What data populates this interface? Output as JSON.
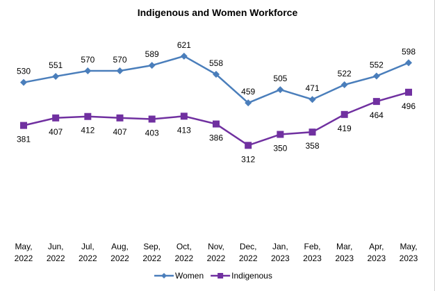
{
  "chart_data": {
    "type": "line",
    "title": "Indigenous and Women Workforce",
    "xlabel": "",
    "ylabel": "",
    "ylim": [
      0,
      700
    ],
    "grid": false,
    "legend_position": "bottom",
    "categories": [
      [
        "May,",
        "2022"
      ],
      [
        "Jun,",
        "2022"
      ],
      [
        "Jul,",
        "2022"
      ],
      [
        "Aug,",
        "2022"
      ],
      [
        "Sep,",
        "2022"
      ],
      [
        "Oct,",
        "2022"
      ],
      [
        "Nov,",
        "2022"
      ],
      [
        "Dec,",
        "2022"
      ],
      [
        "Jan,",
        "2023"
      ],
      [
        "Feb,",
        "2023"
      ],
      [
        "Mar,",
        "2023"
      ],
      [
        "Apr,",
        "2023"
      ],
      [
        "May,",
        "2023"
      ]
    ],
    "series": [
      {
        "name": "Women",
        "color": "#4a7ebb",
        "marker": "diamond",
        "label_position": "above",
        "values": [
          530,
          551,
          570,
          570,
          589,
          621,
          558,
          459,
          505,
          471,
          522,
          552,
          598
        ]
      },
      {
        "name": "Indigenous",
        "color": "#7030a0",
        "marker": "square",
        "label_position": "below",
        "values": [
          381,
          407,
          412,
          407,
          403,
          413,
          386,
          312,
          350,
          358,
          419,
          464,
          496
        ]
      }
    ]
  }
}
